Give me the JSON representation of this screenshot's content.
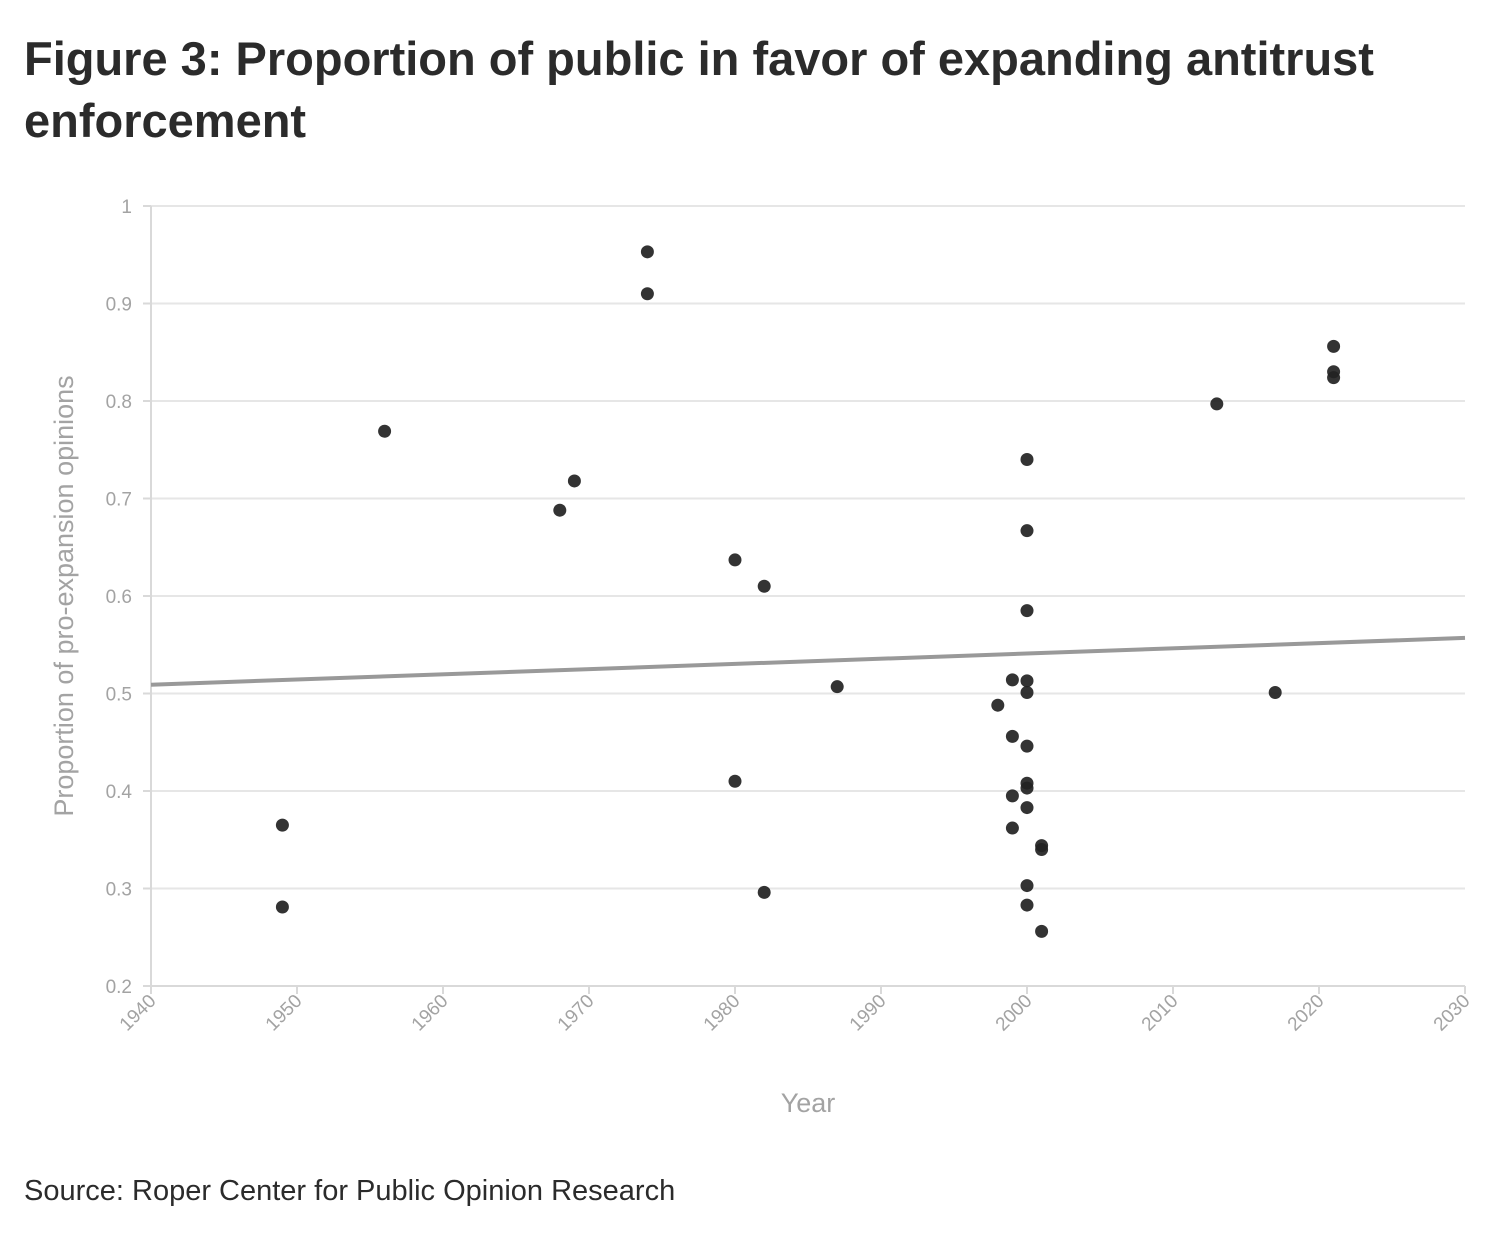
{
  "title": "Figure 3: Proportion of public in favor of expanding antitrust enforcement",
  "source": "Source: Roper Center for Public Opinion Research",
  "colors": {
    "points": "#222222",
    "trend": "#999999",
    "grid": "#e6e6e6",
    "text": "#2b2b2b",
    "muted": "#a3a3a3"
  },
  "chart_data": {
    "type": "scatter",
    "title": "Figure 3: Proportion of public in favor of expanding antitrust enforcement",
    "xlabel": "Year",
    "ylabel": "Proportion of pro-expansion opinions",
    "xlim": [
      1940,
      2030
    ],
    "ylim": [
      0.2,
      1
    ],
    "xticks": [
      1940,
      1950,
      1960,
      1970,
      1980,
      1990,
      2000,
      2010,
      2020,
      2030
    ],
    "yticks": [
      "0.2",
      "0.3",
      "0.4",
      "0.5",
      "0.6",
      "0.7",
      "0.8",
      "0.9",
      "1"
    ],
    "grid": "horizontal",
    "points": [
      {
        "x": 1949,
        "y": 0.365
      },
      {
        "x": 1949,
        "y": 0.281
      },
      {
        "x": 1956,
        "y": 0.769
      },
      {
        "x": 1968,
        "y": 0.688
      },
      {
        "x": 1969,
        "y": 0.718
      },
      {
        "x": 1974,
        "y": 0.953
      },
      {
        "x": 1974,
        "y": 0.91
      },
      {
        "x": 1980,
        "y": 0.637
      },
      {
        "x": 1980,
        "y": 0.41
      },
      {
        "x": 1982,
        "y": 0.61
      },
      {
        "x": 1982,
        "y": 0.296
      },
      {
        "x": 1987,
        "y": 0.507
      },
      {
        "x": 1998,
        "y": 0.488
      },
      {
        "x": 1999,
        "y": 0.514
      },
      {
        "x": 1999,
        "y": 0.456
      },
      {
        "x": 1999,
        "y": 0.395
      },
      {
        "x": 1999,
        "y": 0.362
      },
      {
        "x": 2000,
        "y": 0.74
      },
      {
        "x": 2000,
        "y": 0.667
      },
      {
        "x": 2000,
        "y": 0.585
      },
      {
        "x": 2000,
        "y": 0.513
      },
      {
        "x": 2000,
        "y": 0.501
      },
      {
        "x": 2000,
        "y": 0.446
      },
      {
        "x": 2000,
        "y": 0.408
      },
      {
        "x": 2000,
        "y": 0.403
      },
      {
        "x": 2000,
        "y": 0.383
      },
      {
        "x": 2000,
        "y": 0.303
      },
      {
        "x": 2000,
        "y": 0.283
      },
      {
        "x": 2001,
        "y": 0.344
      },
      {
        "x": 2001,
        "y": 0.34
      },
      {
        "x": 2001,
        "y": 0.256
      },
      {
        "x": 2013,
        "y": 0.797
      },
      {
        "x": 2017,
        "y": 0.501
      },
      {
        "x": 2021,
        "y": 0.856
      },
      {
        "x": 2021,
        "y": 0.83
      },
      {
        "x": 2021,
        "y": 0.824
      }
    ],
    "trendline": {
      "x": [
        1940,
        2030
      ],
      "y": [
        0.509,
        0.557
      ]
    }
  }
}
